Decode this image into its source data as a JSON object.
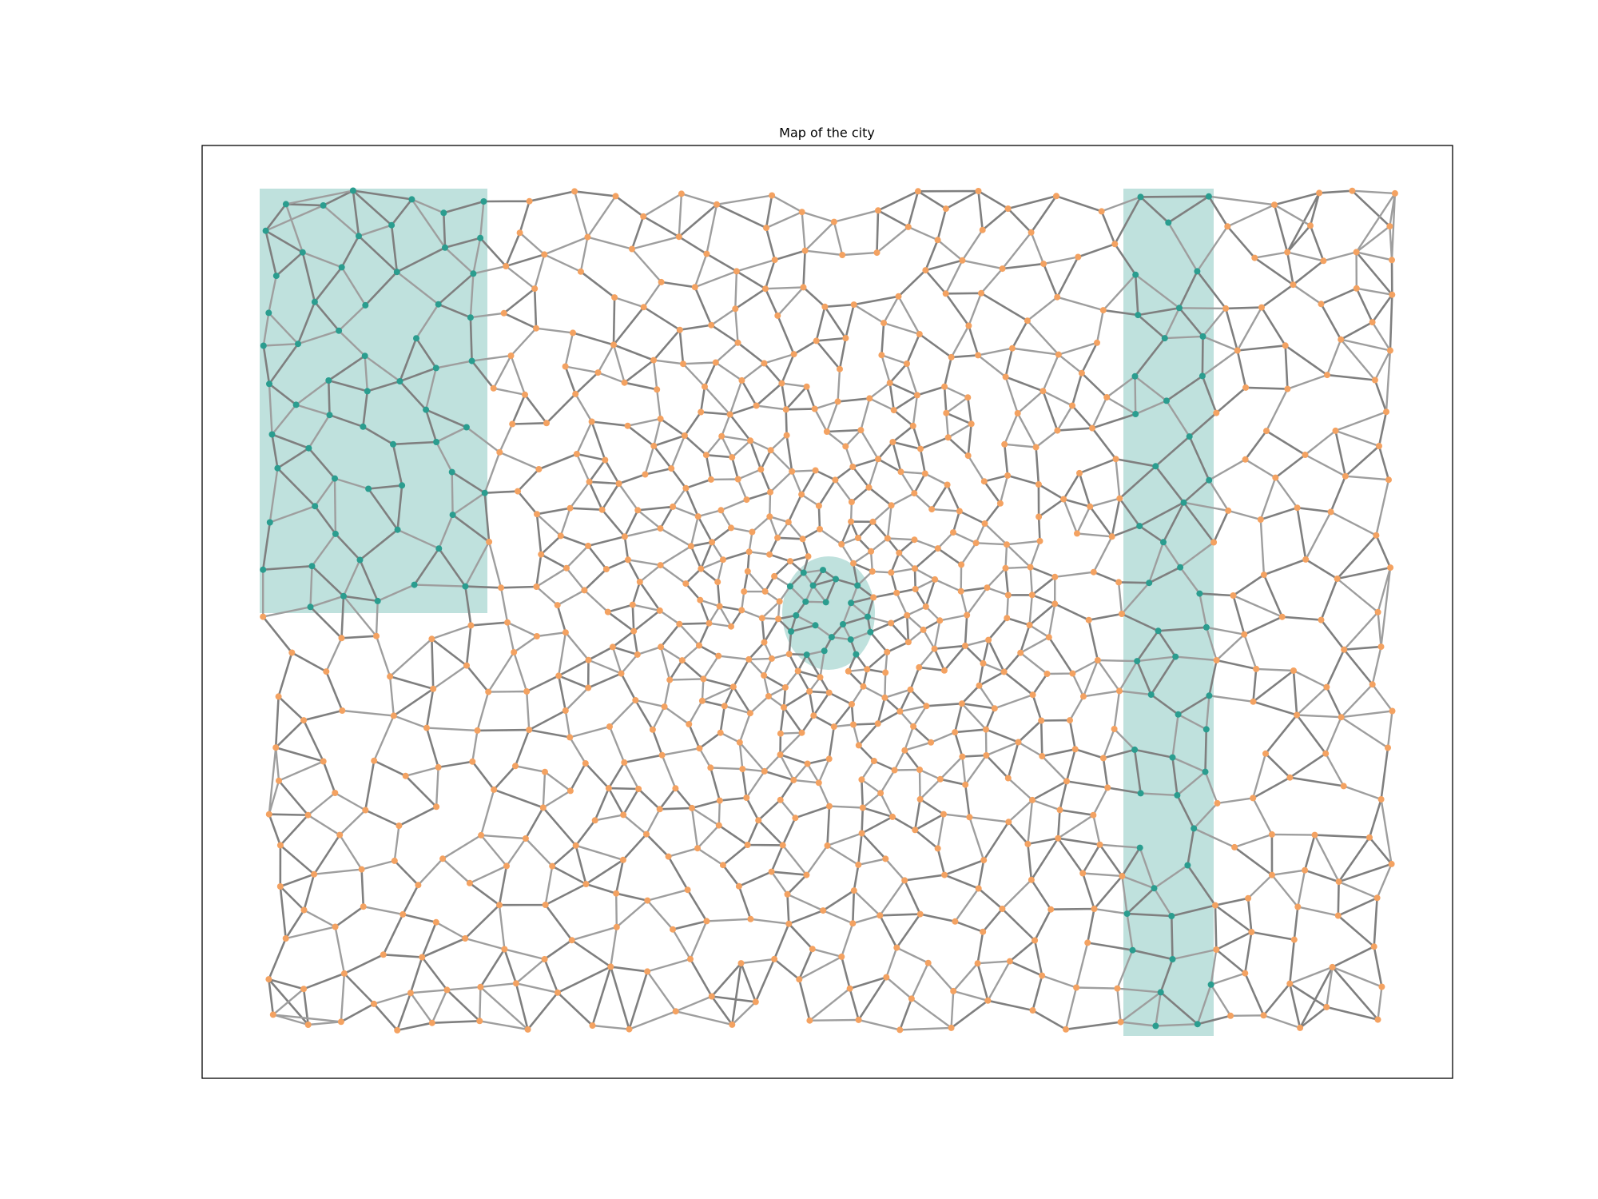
{
  "title": "Map of the city"
}
